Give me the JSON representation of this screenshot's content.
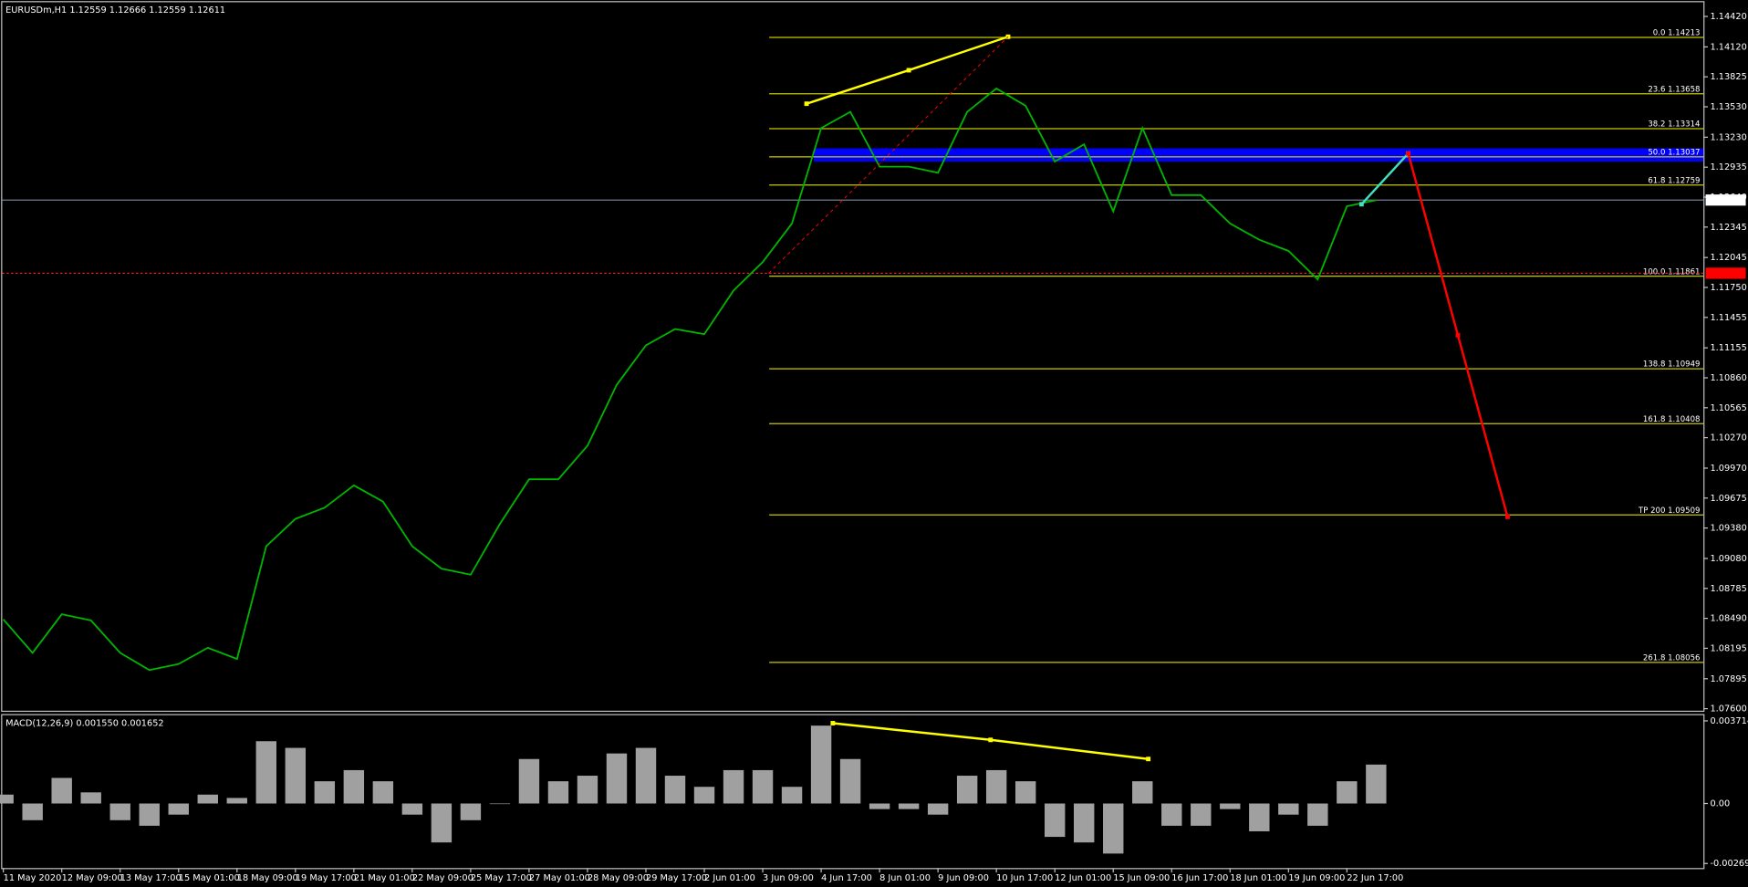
{
  "header": "EURUSDm,H1  1.12559 1.12666 1.12559 1.12611",
  "chart_data": [
    {
      "type": "line",
      "categories": [
        "11 May 2020",
        null,
        "12 May 09:00",
        null,
        "13 May 17:00",
        null,
        "15 May 01:00",
        null,
        "18 May 09:00",
        null,
        "19 May 17:00",
        null,
        "21 May 01:00",
        null,
        "22 May 09:00",
        null,
        "25 May 17:00",
        null,
        "27 May 01:00",
        null,
        "28 May 09:00",
        null,
        "29 May 17:00",
        null,
        "2 Jun 01:00",
        null,
        "3 Jun 09:00",
        null,
        "4 Jun 17:00",
        null,
        "8 Jun 01:00",
        null,
        "9 Jun 09:00",
        null,
        "10 Jun 17:00",
        null,
        "12 Jun 01:00",
        null,
        "15 Jun 09:00",
        null,
        "16 Jun 17:00",
        null,
        "18 Jun 01:00",
        null,
        "19 Jun 09:00",
        null,
        "22 Jun 17:00",
        null
      ],
      "values": [
        1.0848,
        1.0815,
        1.0853,
        1.0847,
        1.0815,
        1.0798,
        1.0804,
        1.082,
        1.0809,
        1.092,
        1.0947,
        1.0958,
        1.098,
        1.0964,
        1.092,
        1.0898,
        1.0892,
        1.0942,
        1.0986,
        1.0986,
        1.1019,
        1.1079,
        1.1118,
        1.1134,
        1.1129,
        1.1172,
        1.12,
        1.1238,
        1.1332,
        1.1348,
        1.1294,
        1.1294,
        1.1288,
        1.1348,
        1.1371,
        1.1354,
        1.1299,
        1.1316,
        1.125,
        1.1332,
        1.1266,
        1.1266,
        1.1238,
        1.1222,
        1.1211,
        1.1183,
        1.1255,
        1.1261
      ],
      "color": "#00b400",
      "ylim": [
        1.0758,
        1.1456
      ],
      "yticks": [
        {
          "value": 1.1442,
          "label": "1.14420"
        },
        {
          "value": 1.1412,
          "label": "1.14120"
        },
        1.13825,
        {
          "value": 1.1353,
          "label": "1.13530"
        },
        {
          "value": 1.1323,
          "label": "1.13230"
        },
        1.12935,
        {
          "value": 1.1264,
          "label": "1.12640"
        },
        1.12345,
        1.12045,
        {
          "value": 1.1175,
          "label": "1.11750"
        },
        1.11455,
        1.11155,
        {
          "value": 1.1086,
          "label": "1.10860"
        },
        1.10565,
        {
          "value": 1.1027,
          "label": "1.10270"
        },
        {
          "value": 1.0997,
          "label": "1.09970"
        },
        1.09675,
        {
          "value": 1.0938,
          "label": "1.09380"
        },
        {
          "value": 1.0908,
          "label": "1.09080"
        },
        1.08785,
        {
          "value": 1.0849,
          "label": "1.08490"
        },
        1.08195,
        1.07895,
        {
          "value": 1.076,
          "label": "1.07600"
        }
      ],
      "current_price": 1.12611,
      "bid_line": 1.1189,
      "zone": [
        1.1299,
        1.1312
      ],
      "zone_color": "#0000ff",
      "levels": [
        {
          "label": "0.0 1.14213",
          "value": 1.14213
        },
        {
          "label": "23.6 1.13658",
          "value": 1.13658
        },
        {
          "label": "38.2 1.13314",
          "value": 1.13314
        },
        {
          "label": "50.0 1.13037",
          "value": 1.13037
        },
        {
          "label": "61.8 1.12759",
          "value": 1.12759
        },
        {
          "label": "100.0 1.11861",
          "value": 1.11861
        },
        {
          "label": "138.8 1.10949",
          "value": 1.10949
        },
        {
          "label": "161.8 1.10408",
          "value": 1.10408
        },
        {
          "label": "TP 200 1.09509",
          "value": 1.09509
        },
        {
          "label": "261.8 1.08056",
          "value": 1.08056
        }
      ],
      "drawings": [
        {
          "color": "#ffff00",
          "x": [
            27.5,
            31,
            34.4
          ],
          "values": [
            1.1356,
            1.1389,
            1.1422
          ]
        },
        {
          "color": "#ff0000",
          "dashed": true,
          "x": [
            26.2,
            34.4
          ],
          "values": [
            1.1189,
            1.1422
          ]
        },
        {
          "color": "#40e0c0",
          "x": [
            46.5,
            48.1
          ],
          "values": [
            1.1257,
            1.1307
          ]
        },
        {
          "color": "#ff0000",
          "x": [
            48.1,
            49.8,
            51.5
          ],
          "values": [
            1.1307,
            1.1128,
            1.0949
          ]
        }
      ]
    },
    {
      "type": "bar",
      "title": "MACD(12,26,9) 0.001550 0.001652",
      "values": [
        0.0004,
        -0.00075,
        0.00115,
        0.0005,
        -0.00075,
        -0.001,
        -0.0005,
        0.0004,
        0.00025,
        0.0028,
        0.0025,
        0.001,
        0.0015,
        0.001,
        -0.0005,
        -0.00175,
        -0.00075,
        0,
        0.002,
        0.001,
        0.00125,
        0.00225,
        0.0025,
        0.00125,
        0.00075,
        0.0015,
        0.0015,
        0.00075,
        0.0035,
        0.002,
        -0.00025,
        -0.00025,
        -0.0005,
        0.00125,
        0.0015,
        0.001,
        -0.0015,
        -0.00175,
        -0.00225,
        0.001,
        -0.001,
        -0.001,
        -0.00025,
        -0.00125,
        -0.0005,
        -0.001,
        0.001,
        0.00175
      ],
      "color": "#a0a0a0",
      "ylim": [
        -0.0029,
        0.00397
      ],
      "yticks": [
        0.003714,
        {
          "value": 0,
          "label": "0.00"
        },
        -0.002696
      ],
      "drawings": [
        {
          "color": "#ffff00",
          "x": [
            28.4,
            33.8,
            39.2
          ],
          "values": [
            0.00361,
            0.00286,
            0.002
          ]
        }
      ]
    }
  ]
}
